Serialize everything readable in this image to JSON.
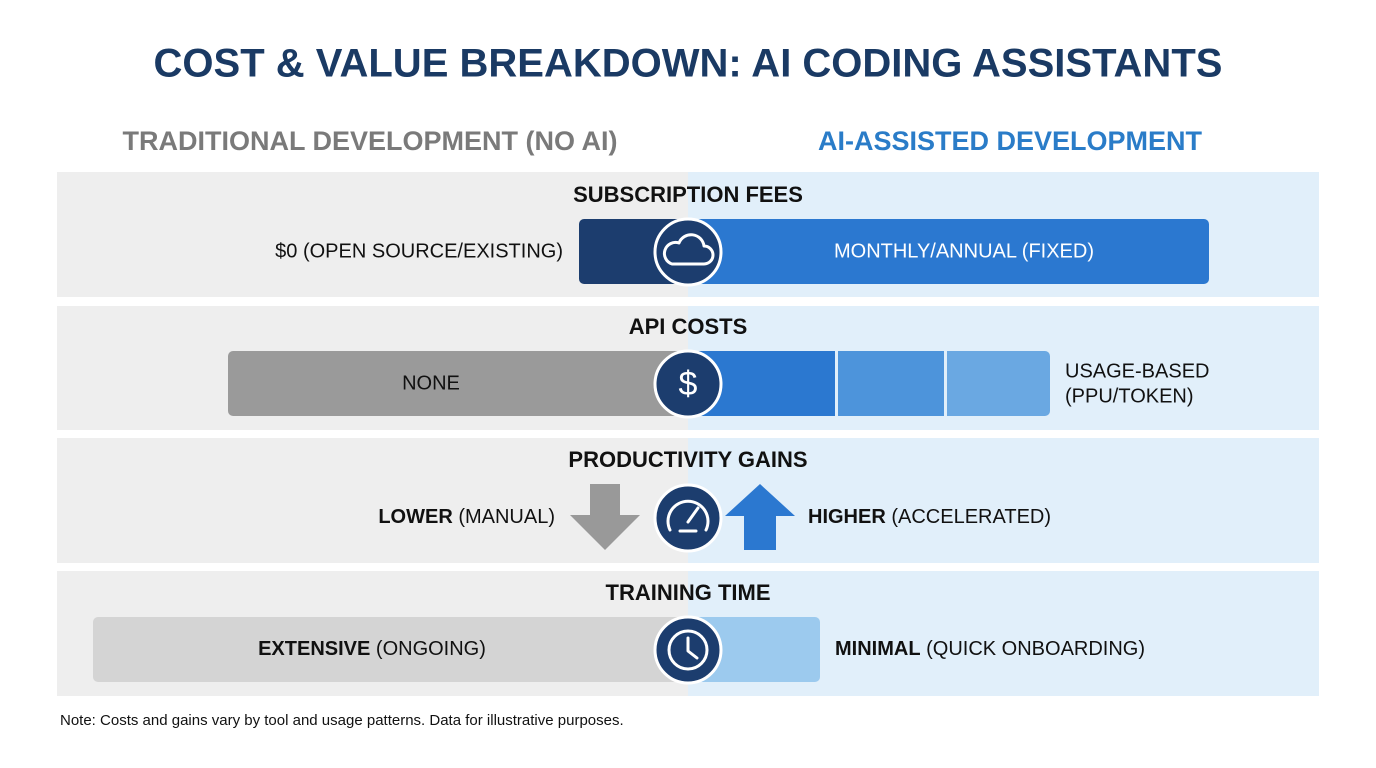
{
  "title": "COST & VALUE BREAKDOWN: AI CODING ASSISTANTS",
  "columns": {
    "left": "TRADITIONAL DEVELOPMENT (NO AI)",
    "right": "AI-ASSISTED DEVELOPMENT"
  },
  "rows": [
    {
      "title": "SUBSCRIPTION FEES",
      "left": "$0 (OPEN SOURCE/EXISTING)",
      "right": "MONTHLY/ANNUAL (FIXED)"
    },
    {
      "title": "API COSTS",
      "left": "NONE",
      "right": [
        "USAGE-BASED",
        "(PPU/TOKEN)"
      ]
    },
    {
      "title": "PRODUCTIVITY GAINS",
      "left": {
        "strong": "LOWER",
        "rest": "(MANUAL)"
      },
      "right": {
        "strong": "HIGHER",
        "rest": "(ACCELERATED)"
      }
    },
    {
      "title": "TRAINING TIME",
      "left": {
        "strong": "EXTENSIVE",
        "rest": "(ONGOING)"
      },
      "right": {
        "strong": "MINIMAL",
        "rest": "(QUICK ONBOARDING)"
      }
    }
  ],
  "note": "Note: Costs and gains vary by tool and usage patterns. Data for illustrative purposes."
}
